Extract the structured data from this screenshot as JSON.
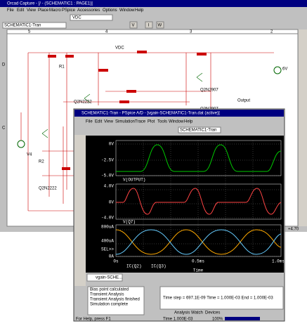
{
  "capture": {
    "title": "Orcad Capture - [/ - (SCHEMATIC1 : PAGE1)]",
    "menu": [
      "File",
      "Edit",
      "View",
      "Place",
      "Macro",
      "PSpice",
      "Accessories",
      "Options",
      "Window",
      "Help"
    ],
    "part_combo": "VDC",
    "profile_combo": "SCHEMATIC1-Tran",
    "probe_buttons": [
      "V",
      "I",
      "W"
    ],
    "ruler": [
      "5",
      "4",
      "3",
      "2"
    ],
    "rows": [
      "D",
      "C"
    ],
    "labels": [
      "VDC",
      "V4",
      "6V",
      "Q2N2907",
      "Q2N2222",
      "Q2N2222",
      "Q2N2907",
      "Output",
      "R1",
      "R2"
    ],
    "status": "+4.70"
  },
  "pspice": {
    "title": "SCHEMATIC1-Tran - PSpice A/D - [vgain-SCHEMATIC1-Tran.dat (active)]",
    "menu": [
      "File",
      "Edit",
      "View",
      "Simulation",
      "Trace",
      "Plot",
      "Tools",
      "Window",
      "Help"
    ],
    "profile_combo": "SCHEMATIC1-Tran",
    "plot1": {
      "yticks": [
        "0V",
        "-2.5V",
        "-5.0V"
      ],
      "trace": "V(OUTPUT)"
    },
    "plot2": {
      "yticks": [
        "4.0V",
        "0V",
        "-4.0V"
      ],
      "trace": "V(Q7)"
    },
    "plot3": {
      "yticks": [
        "800uA",
        "400uA",
        "SEL>>",
        "0A"
      ],
      "traces": [
        "IC(Q2)",
        "IC(Q3)"
      ]
    },
    "xticks": [
      "0s",
      "0.5ms",
      "1.0ms"
    ],
    "xlabel": "Time",
    "tab": "vgain-SCHE...",
    "output": [
      "Bias point calculated",
      "Transient Analysis",
      "Transient Analysis finished",
      "Simulation complete"
    ],
    "progress": "Time step = 697.1E-09    Time = 1.000E-03    End = 1.000E-03",
    "tabs": [
      "Analysis",
      "Watch",
      "Devices"
    ],
    "statusbar": [
      "For Help, press F1",
      "Time 1.000E-03",
      "100%"
    ]
  }
}
